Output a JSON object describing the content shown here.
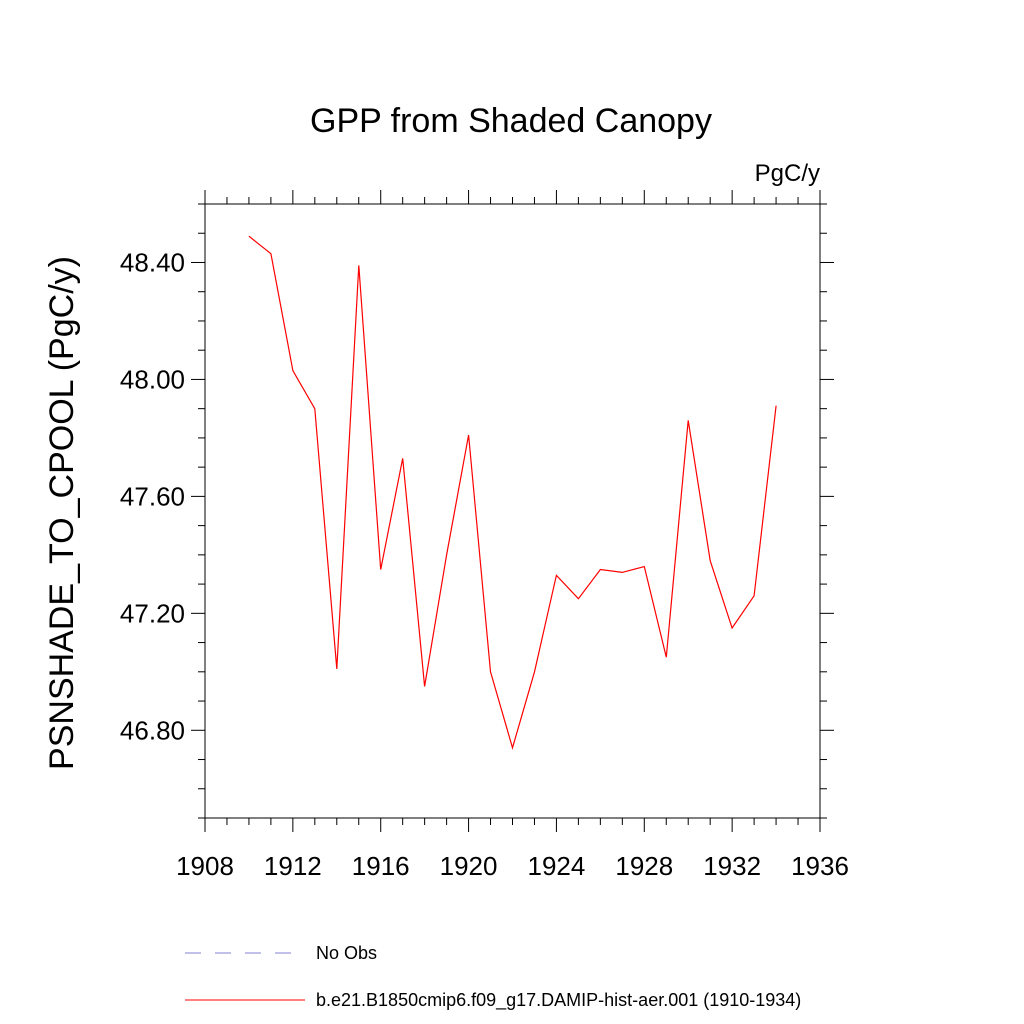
{
  "chart_data": {
    "type": "line",
    "title": "GPP from Shaded Canopy",
    "units": "PgC/y",
    "ylabel": "PSNSHADE_TO_CPOOL  (PgC/y)",
    "xlabel": "",
    "xlim": [
      1908,
      1936
    ],
    "ylim": [
      46.5,
      48.6
    ],
    "x_ticks": [
      "1908",
      "1912",
      "1916",
      "1920",
      "1924",
      "1928",
      "1932",
      "1936"
    ],
    "y_ticks": [
      "46.80",
      "47.20",
      "47.60",
      "48.00",
      "48.40"
    ],
    "grid": false,
    "series": [
      {
        "name": "b.e21.B1850cmip6.f09_g17.DAMIP-hist-aer.001 (1910-1934)",
        "color": "#ff0000",
        "style": "solid",
        "x": [
          1910,
          1911,
          1912,
          1913,
          1914,
          1915,
          1916,
          1917,
          1918,
          1919,
          1920,
          1921,
          1922,
          1923,
          1924,
          1925,
          1926,
          1927,
          1928,
          1929,
          1930,
          1931,
          1932,
          1933,
          1934
        ],
        "y": [
          48.49,
          48.43,
          48.03,
          47.9,
          47.01,
          48.39,
          47.35,
          47.73,
          46.95,
          47.4,
          47.81,
          47.0,
          46.74,
          47.0,
          47.33,
          47.25,
          47.35,
          47.34,
          47.36,
          47.05,
          47.86,
          47.38,
          47.15,
          47.26,
          47.91
        ]
      }
    ],
    "legend": {
      "placement": "bottom",
      "entries": [
        {
          "label": "No Obs",
          "color": "#8080d0",
          "style": "dashed"
        },
        {
          "label": "b.e21.B1850cmip6.f09_g17.DAMIP-hist-aer.001 (1910-1934)",
          "color": "#ff0000",
          "style": "solid"
        }
      ]
    }
  }
}
